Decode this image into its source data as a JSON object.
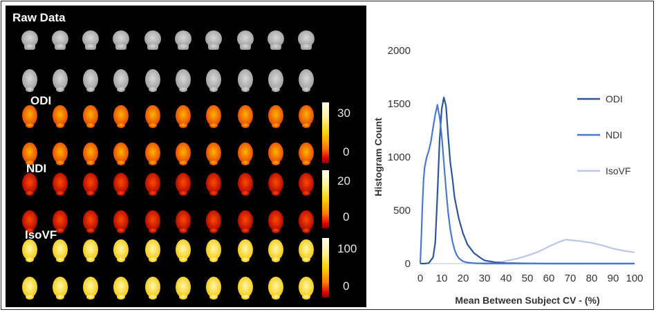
{
  "brain_panel": {
    "rows": [
      {
        "label": "Raw Data",
        "map": "gray",
        "colorbar": null
      },
      {
        "label": "ODI",
        "map": "hot",
        "colorbar": {
          "max": "30",
          "min": "0"
        }
      },
      {
        "label": "NDI",
        "map": "hot-dark",
        "colorbar": {
          "max": "20",
          "min": "0"
        }
      },
      {
        "label": "IsoVF",
        "map": "yellow",
        "colorbar": {
          "max": "100",
          "min": "0"
        }
      }
    ]
  },
  "chart_data": {
    "type": "line",
    "title": "",
    "xlabel": "Mean Between Subject CV - (%)",
    "ylabel": "Histogram Count",
    "xlim": [
      0,
      100
    ],
    "ylim": [
      0,
      2000
    ],
    "x_ticks": [
      "0",
      "10",
      "20",
      "30",
      "40",
      "50",
      "60",
      "70",
      "80",
      "90",
      "100"
    ],
    "y_ticks": [
      "0",
      "500",
      "1000",
      "1500",
      "2000"
    ],
    "legend": "right",
    "grid": false,
    "series": [
      {
        "name": "ODI",
        "color": "#2e5597",
        "x": [
          0,
          2,
          4,
          6,
          7,
          8,
          9,
          10,
          11,
          12,
          13,
          14,
          15,
          16,
          18,
          20,
          22,
          25,
          28,
          30,
          35,
          40,
          50,
          60,
          70,
          80,
          90,
          100
        ],
        "y": [
          0,
          0,
          5,
          60,
          200,
          650,
          1150,
          1450,
          1560,
          1480,
          1200,
          950,
          800,
          620,
          420,
          280,
          180,
          100,
          55,
          30,
          12,
          5,
          2,
          0,
          0,
          0,
          0,
          0
        ]
      },
      {
        "name": "NDI",
        "color": "#4a78cc",
        "x": [
          0,
          0.5,
          1,
          1.5,
          2,
          3,
          4,
          5,
          6,
          7,
          8,
          8.5,
          9,
          10,
          11,
          12,
          13,
          14,
          15,
          16,
          17,
          18,
          20,
          22,
          25,
          30,
          40,
          50,
          60,
          70,
          80,
          90,
          100
        ],
        "y": [
          0,
          250,
          550,
          780,
          900,
          1000,
          1060,
          1150,
          1280,
          1400,
          1490,
          1430,
          1380,
          1200,
          950,
          700,
          480,
          320,
          210,
          130,
          80,
          50,
          20,
          10,
          4,
          0,
          0,
          0,
          0,
          0,
          0,
          0,
          0
        ]
      },
      {
        "name": "IsoVF",
        "color": "#bcc5e3",
        "x": [
          25,
          30,
          35,
          38,
          40,
          45,
          50,
          55,
          60,
          65,
          68,
          70,
          75,
          80,
          85,
          90,
          95,
          100
        ],
        "y": [
          0,
          5,
          10,
          15,
          25,
          45,
          75,
          110,
          160,
          205,
          225,
          220,
          210,
          195,
          170,
          140,
          120,
          105
        ]
      }
    ]
  }
}
